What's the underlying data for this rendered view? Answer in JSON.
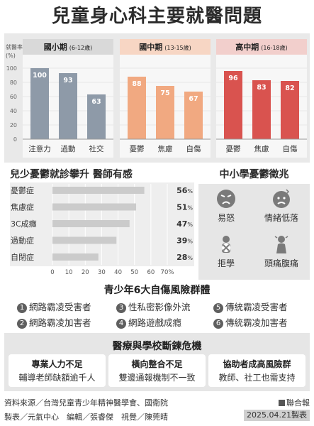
{
  "title": "兒童身心科主要就醫問題",
  "chart_data": [
    {
      "type": "bar",
      "ylabel": "就醫率",
      "yunit": "(%)",
      "ylim": [
        0,
        100
      ],
      "yticks": [
        "100",
        "80",
        "60",
        "40",
        "20",
        "0"
      ],
      "groups": [
        {
          "name": "國小期",
          "sub": "(6-12歲)",
          "color": "#8e9aa8",
          "header_bg": "#d9d9d9",
          "categories": [
            "注意力",
            "過動",
            "社交"
          ],
          "values": [
            100,
            93,
            63
          ],
          "labels": [
            "100",
            "93",
            "63"
          ]
        },
        {
          "name": "國中期",
          "sub": "(13-15歲)",
          "color": "#f1a981",
          "header_bg": "#f7d6c4",
          "categories": [
            "憂鬱",
            "焦慮",
            "自傷"
          ],
          "values": [
            88,
            75,
            67
          ],
          "labels": [
            "88",
            "75",
            "67"
          ]
        },
        {
          "name": "高中期",
          "sub": "(16-18歲)",
          "color": "#d9534f",
          "header_bg": "#f2cfcc",
          "categories": [
            "憂鬱",
            "焦慮",
            "自傷"
          ],
          "values": [
            96,
            83,
            82
          ],
          "labels": [
            "96",
            "83",
            "82"
          ]
        }
      ]
    },
    {
      "type": "bar",
      "orientation": "horizontal",
      "title": "兒少憂鬱就診攀升  醫師有感",
      "categories": [
        "憂鬱症",
        "焦慮症",
        "3C成癮",
        "過動症",
        "自閉症"
      ],
      "values": [
        56,
        51,
        47,
        39,
        28
      ],
      "labels": [
        "56",
        "51",
        "47",
        "39",
        "28"
      ],
      "unit": "%",
      "xlim": [
        0,
        70
      ],
      "xticks": [
        "0",
        "10",
        "20",
        "30",
        "40",
        "50",
        "60",
        "70%"
      ]
    }
  ],
  "symptoms": {
    "title": "中小學憂鬱徵兆",
    "items": [
      {
        "label": "易怒",
        "icon": "angry-face-icon"
      },
      {
        "label": "情緒低落",
        "icon": "sad-face-icon"
      },
      {
        "label": "拒學",
        "icon": "no-school-icon"
      },
      {
        "label": "頭痛腹痛",
        "icon": "pain-person-icon"
      }
    ]
  },
  "risk": {
    "title": "青少年6大自傷風險群體",
    "items": [
      {
        "num": "1",
        "label": "網路霸凌受害者"
      },
      {
        "num": "2",
        "label": "網路霸凌加害者"
      },
      {
        "num": "3",
        "label": "性私密影像外流"
      },
      {
        "num": "4",
        "label": "網路遊戲成癮"
      },
      {
        "num": "5",
        "label": "傳統霸凌受害者"
      },
      {
        "num": "6",
        "label": "傳統霸凌加害者"
      }
    ]
  },
  "medical": {
    "title": "醫療與學校斷鍊危機",
    "boxes": [
      {
        "head": "專業人力不足",
        "desc": "輔導老師缺額逾千人"
      },
      {
        "head": "橫向整合不足",
        "desc": "雙邊通報機制不一致"
      },
      {
        "head": "協助者成高風險群",
        "desc": "教師、社工也需支持"
      }
    ]
  },
  "footer": {
    "source": "資料來源／台灣兒童青少年精神醫學會、國衛院",
    "credits": "製表／元氣中心　編輯／張睿傑　視覺／陳莞晴",
    "brand": "聯合報",
    "date": "2025.04.21製表"
  },
  "colors": {
    "gray": "#8e9aa8",
    "orange": "#f1a981",
    "red": "#d9534f",
    "hbar": "#c9c9c9"
  }
}
